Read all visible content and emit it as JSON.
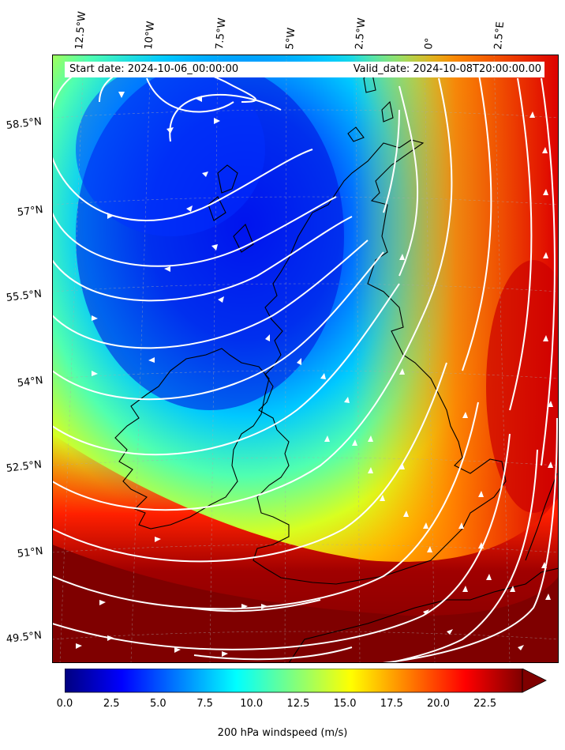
{
  "header": {
    "start_date": "Start date: 2024-10-06_00:00:00",
    "valid_date": "Valid_date: 2024-10-08T20:00:00.00"
  },
  "longitude_labels": [
    "12.5°W",
    "10°W",
    "7.5°W",
    "5°W",
    "2.5°W",
    "0°",
    "2.5°E"
  ],
  "latitude_labels": [
    "58.5°N",
    "57°N",
    "55.5°N",
    "54°N",
    "52.5°N",
    "51°N",
    "49.5°N"
  ],
  "colorbar": {
    "label": "200 hPa windspeed (m/s)",
    "ticks": [
      "0.0",
      "2.5",
      "5.0",
      "7.5",
      "10.0",
      "12.5",
      "15.0",
      "17.5",
      "20.0",
      "22.5"
    ],
    "colors": [
      "#00007f",
      "#0000ff",
      "#007fff",
      "#00ffff",
      "#7fff7f",
      "#ffff00",
      "#ff7f00",
      "#ff0000",
      "#7f0000"
    ],
    "extend": "max"
  },
  "map": {
    "field": "jet colormap, minimum over the Hebrides and Minch, maximum over the English Channel and southern North Sea",
    "streamline_color": "#ffffff",
    "coastline_color": "#000000"
  }
}
